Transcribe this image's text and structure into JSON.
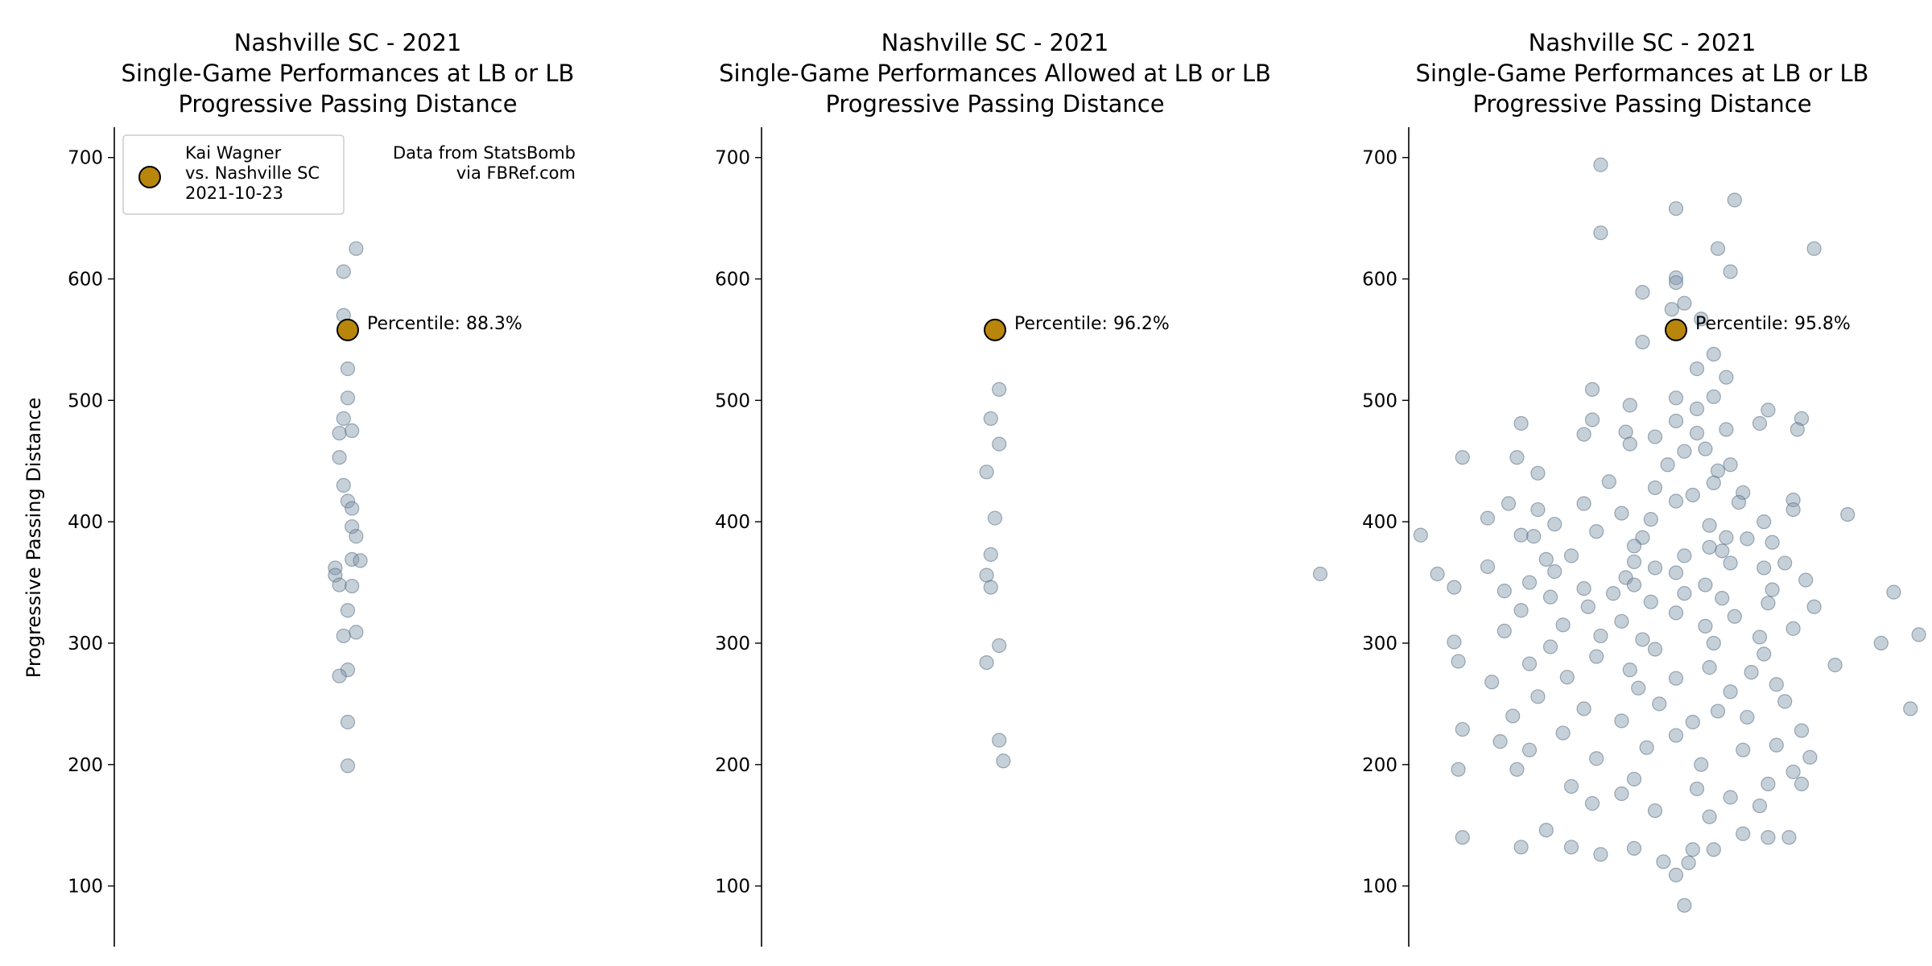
{
  "chart_data": [
    {
      "type": "scatter",
      "title": [
        "Nashville SC - 2021",
        "Single-Game Performances at LB or LB",
        "Progressive Passing Distance"
      ],
      "ylabel": "Progressive Passing Distance",
      "ylim": [
        50,
        725
      ],
      "yticks": [
        100,
        200,
        300,
        400,
        500,
        600,
        700
      ],
      "xlim": [
        -1,
        1
      ],
      "spines": "left-only",
      "background_color": "#8096ab",
      "highlight_color": "#b8860b",
      "points": [
        {
          "x": 0.02,
          "y": 625
        },
        {
          "x": -0.01,
          "y": 606
        },
        {
          "x": -0.01,
          "y": 570
        },
        {
          "x": 0.0,
          "y": 526
        },
        {
          "x": 0.0,
          "y": 502
        },
        {
          "x": -0.01,
          "y": 485
        },
        {
          "x": -0.02,
          "y": 473
        },
        {
          "x": 0.01,
          "y": 475
        },
        {
          "x": -0.02,
          "y": 453
        },
        {
          "x": -0.01,
          "y": 430
        },
        {
          "x": 0.0,
          "y": 417
        },
        {
          "x": 0.01,
          "y": 411
        },
        {
          "x": 0.01,
          "y": 396
        },
        {
          "x": 0.02,
          "y": 388
        },
        {
          "x": 0.01,
          "y": 369
        },
        {
          "x": 0.03,
          "y": 368
        },
        {
          "x": -0.03,
          "y": 362
        },
        {
          "x": -0.03,
          "y": 356
        },
        {
          "x": -0.02,
          "y": 348
        },
        {
          "x": 0.01,
          "y": 347
        },
        {
          "x": 0.0,
          "y": 327
        },
        {
          "x": 0.02,
          "y": 309
        },
        {
          "x": -0.01,
          "y": 306
        },
        {
          "x": 0.0,
          "y": 278
        },
        {
          "x": -0.02,
          "y": 273
        },
        {
          "x": 0.0,
          "y": 235
        },
        {
          "x": 0.0,
          "y": 199
        }
      ],
      "highlight": {
        "x": 0.0,
        "y": 558
      },
      "percentile_label": "Percentile: 88.3%",
      "legend": {
        "lines": [
          "Kai Wagner",
          "vs. Nashville SC",
          "2021-10-23"
        ],
        "placement": "upper-left"
      },
      "source_note": [
        "Data from StatsBomb",
        "via FBRef.com"
      ]
    },
    {
      "type": "scatter",
      "title": [
        "Nashville SC - 2021",
        "Single-Game Performances Allowed at LB or LB",
        "Progressive Passing Distance"
      ],
      "ylabel": "",
      "ylim": [
        50,
        725
      ],
      "yticks": [
        100,
        200,
        300,
        400,
        500,
        600,
        700
      ],
      "xlim": [
        -1,
        1
      ],
      "spines": "left-only",
      "background_color": "#8096ab",
      "highlight_color": "#b8860b",
      "points": [
        {
          "x": 0.01,
          "y": 509
        },
        {
          "x": -0.01,
          "y": 485
        },
        {
          "x": 0.01,
          "y": 464
        },
        {
          "x": -0.02,
          "y": 441
        },
        {
          "x": 0.0,
          "y": 403
        },
        {
          "x": -0.01,
          "y": 373
        },
        {
          "x": -0.02,
          "y": 356
        },
        {
          "x": -0.01,
          "y": 346
        },
        {
          "x": 0.01,
          "y": 298
        },
        {
          "x": -0.02,
          "y": 284
        },
        {
          "x": 0.01,
          "y": 220
        },
        {
          "x": 0.02,
          "y": 203
        }
      ],
      "highlight": {
        "x": 0.0,
        "y": 558
      },
      "percentile_label": "Percentile: 96.2%"
    },
    {
      "type": "scatter",
      "title": [
        "Nashville SC - 2021",
        "Single-Game Performances at LB or LB",
        "Progressive Passing Distance"
      ],
      "ylabel": "",
      "ylim": [
        50,
        725
      ],
      "yticks": [
        100,
        200,
        300,
        400,
        500,
        600,
        700
      ],
      "xlim": [
        -1,
        1
      ],
      "spines": "left-only",
      "background_color": "#8096ab",
      "highlight_color": "#b8860b",
      "points": [
        {
          "x": -0.18,
          "y": 694
        },
        {
          "x": 0.14,
          "y": 665
        },
        {
          "x": 0.0,
          "y": 658
        },
        {
          "x": -0.18,
          "y": 638
        },
        {
          "x": 0.1,
          "y": 625
        },
        {
          "x": 0.33,
          "y": 625
        },
        {
          "x": 0.13,
          "y": 606
        },
        {
          "x": 0.0,
          "y": 601
        },
        {
          "x": 0.0,
          "y": 597
        },
        {
          "x": -0.08,
          "y": 589
        },
        {
          "x": 0.02,
          "y": 580
        },
        {
          "x": -0.01,
          "y": 575
        },
        {
          "x": 0.06,
          "y": 567
        },
        {
          "x": -0.08,
          "y": 548
        },
        {
          "x": 0.09,
          "y": 538
        },
        {
          "x": 0.05,
          "y": 526
        },
        {
          "x": 0.12,
          "y": 519
        },
        {
          "x": -0.2,
          "y": 509
        },
        {
          "x": 0.0,
          "y": 502
        },
        {
          "x": 0.09,
          "y": 503
        },
        {
          "x": -0.11,
          "y": 496
        },
        {
          "x": 0.05,
          "y": 493
        },
        {
          "x": 0.22,
          "y": 492
        },
        {
          "x": 0.3,
          "y": 485
        },
        {
          "x": -0.2,
          "y": 484
        },
        {
          "x": 0.0,
          "y": 483
        },
        {
          "x": 0.2,
          "y": 481
        },
        {
          "x": 0.12,
          "y": 476
        },
        {
          "x": -0.12,
          "y": 474
        },
        {
          "x": 0.05,
          "y": 473
        },
        {
          "x": 0.29,
          "y": 476
        },
        {
          "x": -0.22,
          "y": 472
        },
        {
          "x": -0.05,
          "y": 470
        },
        {
          "x": -0.37,
          "y": 481
        },
        {
          "x": -0.11,
          "y": 464
        },
        {
          "x": 0.07,
          "y": 460
        },
        {
          "x": -0.51,
          "y": 453
        },
        {
          "x": -0.38,
          "y": 453
        },
        {
          "x": 0.02,
          "y": 458
        },
        {
          "x": -0.02,
          "y": 447
        },
        {
          "x": 0.13,
          "y": 447
        },
        {
          "x": 0.1,
          "y": 442
        },
        {
          "x": -0.33,
          "y": 440
        },
        {
          "x": -0.16,
          "y": 433
        },
        {
          "x": 0.09,
          "y": 432
        },
        {
          "x": -0.05,
          "y": 428
        },
        {
          "x": 0.16,
          "y": 424
        },
        {
          "x": 0.04,
          "y": 422
        },
        {
          "x": 0.28,
          "y": 418
        },
        {
          "x": -0.4,
          "y": 415
        },
        {
          "x": -0.22,
          "y": 415
        },
        {
          "x": 0.0,
          "y": 417
        },
        {
          "x": 0.15,
          "y": 416
        },
        {
          "x": 0.41,
          "y": 406
        },
        {
          "x": -0.33,
          "y": 410
        },
        {
          "x": 0.28,
          "y": 410
        },
        {
          "x": -0.13,
          "y": 407
        },
        {
          "x": -0.45,
          "y": 403
        },
        {
          "x": -0.06,
          "y": 402
        },
        {
          "x": 0.21,
          "y": 400
        },
        {
          "x": -0.29,
          "y": 398
        },
        {
          "x": 0.08,
          "y": 397
        },
        {
          "x": -0.19,
          "y": 392
        },
        {
          "x": -0.37,
          "y": 389
        },
        {
          "x": -0.61,
          "y": 389
        },
        {
          "x": -0.34,
          "y": 388
        },
        {
          "x": -0.08,
          "y": 387
        },
        {
          "x": 0.12,
          "y": 387
        },
        {
          "x": 0.17,
          "y": 386
        },
        {
          "x": 0.23,
          "y": 383
        },
        {
          "x": -0.1,
          "y": 380
        },
        {
          "x": 0.08,
          "y": 379
        },
        {
          "x": 0.11,
          "y": 376
        },
        {
          "x": -0.25,
          "y": 372
        },
        {
          "x": 0.02,
          "y": 372
        },
        {
          "x": -0.31,
          "y": 369
        },
        {
          "x": -0.1,
          "y": 367
        },
        {
          "x": 0.13,
          "y": 366
        },
        {
          "x": 0.26,
          "y": 366
        },
        {
          "x": -0.45,
          "y": 363
        },
        {
          "x": -0.05,
          "y": 362
        },
        {
          "x": 0.21,
          "y": 362
        },
        {
          "x": -0.57,
          "y": 357
        },
        {
          "x": -0.85,
          "y": 357
        },
        {
          "x": -0.29,
          "y": 359
        },
        {
          "x": 0.0,
          "y": 358
        },
        {
          "x": -0.12,
          "y": 354
        },
        {
          "x": 0.31,
          "y": 352
        },
        {
          "x": -0.35,
          "y": 350
        },
        {
          "x": -0.1,
          "y": 348
        },
        {
          "x": 0.07,
          "y": 348
        },
        {
          "x": -0.53,
          "y": 346
        },
        {
          "x": -0.22,
          "y": 345
        },
        {
          "x": 0.23,
          "y": 344
        },
        {
          "x": -0.41,
          "y": 343
        },
        {
          "x": -0.15,
          "y": 341
        },
        {
          "x": 0.02,
          "y": 341
        },
        {
          "x": 0.52,
          "y": 342
        },
        {
          "x": 0.66,
          "y": 342
        },
        {
          "x": -0.3,
          "y": 338
        },
        {
          "x": 0.11,
          "y": 337
        },
        {
          "x": -0.06,
          "y": 334
        },
        {
          "x": 0.22,
          "y": 333
        },
        {
          "x": -0.21,
          "y": 330
        },
        {
          "x": 0.33,
          "y": 330
        },
        {
          "x": -0.37,
          "y": 327
        },
        {
          "x": 0.0,
          "y": 325
        },
        {
          "x": 0.14,
          "y": 322
        },
        {
          "x": -0.13,
          "y": 318
        },
        {
          "x": -0.27,
          "y": 315
        },
        {
          "x": 0.07,
          "y": 314
        },
        {
          "x": 0.28,
          "y": 312
        },
        {
          "x": -0.41,
          "y": 310
        },
        {
          "x": 0.58,
          "y": 307
        },
        {
          "x": 0.72,
          "y": 307
        },
        {
          "x": -0.18,
          "y": 306
        },
        {
          "x": 0.2,
          "y": 305
        },
        {
          "x": -0.08,
          "y": 303
        },
        {
          "x": -0.53,
          "y": 301
        },
        {
          "x": 0.09,
          "y": 300
        },
        {
          "x": 0.49,
          "y": 300
        },
        {
          "x": -0.3,
          "y": 297
        },
        {
          "x": -0.05,
          "y": 295
        },
        {
          "x": 0.21,
          "y": 291
        },
        {
          "x": -0.19,
          "y": 289
        },
        {
          "x": 0.38,
          "y": 282
        },
        {
          "x": 0.63,
          "y": 282
        },
        {
          "x": -0.52,
          "y": 285
        },
        {
          "x": -0.35,
          "y": 283
        },
        {
          "x": 0.08,
          "y": 280
        },
        {
          "x": -0.11,
          "y": 278
        },
        {
          "x": 0.18,
          "y": 276
        },
        {
          "x": -0.26,
          "y": 272
        },
        {
          "x": 0.0,
          "y": 271
        },
        {
          "x": -0.44,
          "y": 268
        },
        {
          "x": 0.24,
          "y": 266
        },
        {
          "x": -0.09,
          "y": 263
        },
        {
          "x": 0.13,
          "y": 260
        },
        {
          "x": -0.33,
          "y": 256
        },
        {
          "x": 0.26,
          "y": 252
        },
        {
          "x": 0.56,
          "y": 246
        },
        {
          "x": -0.04,
          "y": 250
        },
        {
          "x": -0.22,
          "y": 246
        },
        {
          "x": 0.1,
          "y": 244
        },
        {
          "x": -0.39,
          "y": 240
        },
        {
          "x": 0.17,
          "y": 239
        },
        {
          "x": -0.13,
          "y": 236
        },
        {
          "x": 0.04,
          "y": 235
        },
        {
          "x": -0.51,
          "y": 229
        },
        {
          "x": 0.3,
          "y": 228
        },
        {
          "x": -0.27,
          "y": 226
        },
        {
          "x": 0.0,
          "y": 224
        },
        {
          "x": -0.42,
          "y": 219
        },
        {
          "x": 0.24,
          "y": 216
        },
        {
          "x": -0.07,
          "y": 214
        },
        {
          "x": 0.16,
          "y": 212
        },
        {
          "x": -0.35,
          "y": 212
        },
        {
          "x": 0.32,
          "y": 206
        },
        {
          "x": -0.19,
          "y": 205
        },
        {
          "x": 0.06,
          "y": 200
        },
        {
          "x": -0.52,
          "y": 196
        },
        {
          "x": -0.38,
          "y": 196
        },
        {
          "x": 0.28,
          "y": 194
        },
        {
          "x": -0.1,
          "y": 188
        },
        {
          "x": 0.22,
          "y": 184
        },
        {
          "x": 0.3,
          "y": 184
        },
        {
          "x": -0.25,
          "y": 182
        },
        {
          "x": 0.05,
          "y": 180
        },
        {
          "x": -0.13,
          "y": 176
        },
        {
          "x": 0.13,
          "y": 173
        },
        {
          "x": -0.2,
          "y": 168
        },
        {
          "x": 0.2,
          "y": 166
        },
        {
          "x": -0.05,
          "y": 162
        },
        {
          "x": 0.08,
          "y": 157
        },
        {
          "x": -0.31,
          "y": 146
        },
        {
          "x": 0.16,
          "y": 143
        },
        {
          "x": -0.51,
          "y": 140
        },
        {
          "x": 0.27,
          "y": 140
        },
        {
          "x": 0.22,
          "y": 140
        },
        {
          "x": -0.37,
          "y": 132
        },
        {
          "x": -0.25,
          "y": 132
        },
        {
          "x": -0.1,
          "y": 131
        },
        {
          "x": 0.09,
          "y": 130
        },
        {
          "x": 0.04,
          "y": 130
        },
        {
          "x": -0.18,
          "y": 126
        },
        {
          "x": -0.03,
          "y": 120
        },
        {
          "x": 0.03,
          "y": 119
        },
        {
          "x": 0.0,
          "y": 109
        },
        {
          "x": 0.02,
          "y": 84
        }
      ],
      "highlight": {
        "x": 0.0,
        "y": 558
      },
      "percentile_label": "Percentile: 95.8%"
    }
  ]
}
